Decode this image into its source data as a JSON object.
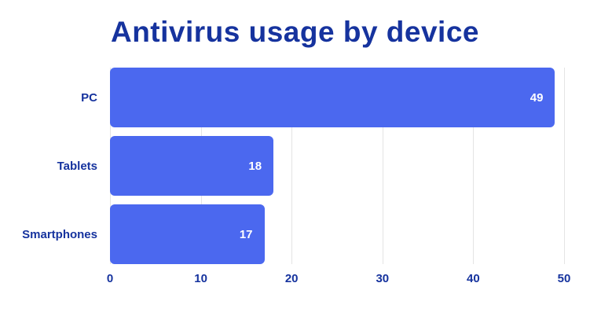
{
  "chart_data": {
    "type": "bar",
    "orientation": "horizontal",
    "title": "Antivirus usage by device",
    "categories": [
      "PC",
      "Tablets",
      "Smartphones"
    ],
    "values": [
      49,
      18,
      17
    ],
    "xlabel": "",
    "ylabel": "",
    "xlim": [
      0,
      50
    ],
    "x_ticks": [
      0,
      10,
      20,
      30,
      40,
      50
    ],
    "grid": "vertical",
    "legend": "none",
    "value_labels": "inside-end-white",
    "colors": {
      "bar": "#4b68ef",
      "title_text": "#16339e",
      "axis_text": "#16339e",
      "category_text": "#16339e",
      "value_text": "#ffffff",
      "gridline": "#e4e4e4",
      "background": "#ffffff"
    }
  }
}
